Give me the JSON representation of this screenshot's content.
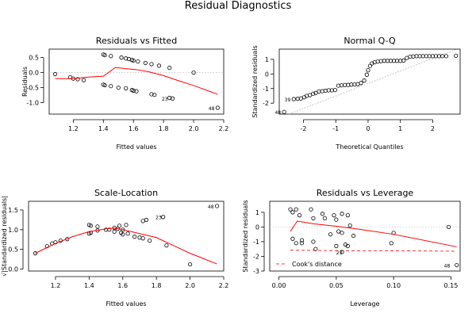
{
  "suptitle": "Residual Diagnostics",
  "chart_data": [
    {
      "type": "scatter",
      "title": "Residuals vs Fitted",
      "xlabel": "Fitted values",
      "ylabel": "Residuals",
      "xlim": [
        1.04,
        2.2
      ],
      "ylim": [
        -1.38,
        0.78
      ],
      "xticks": [
        "1.2",
        "1.4",
        "1.6",
        "1.8",
        "2.0",
        "2.2"
      ],
      "yticks": [
        "-1.0",
        "-0.5",
        "0.0",
        "0.5"
      ],
      "reference_line_y": 0,
      "points": [
        [
          1.08,
          -0.05
        ],
        [
          1.18,
          -0.15
        ],
        [
          1.2,
          -0.2
        ],
        [
          1.23,
          -0.22
        ],
        [
          1.27,
          -0.25
        ],
        [
          1.4,
          0.6
        ],
        [
          1.41,
          0.58
        ],
        [
          1.4,
          -0.4
        ],
        [
          1.41,
          -0.42
        ],
        [
          1.45,
          0.55
        ],
        [
          1.45,
          -0.45
        ],
        [
          1.5,
          -0.5
        ],
        [
          1.52,
          0.5
        ],
        [
          1.55,
          0.47
        ],
        [
          1.55,
          -0.52
        ],
        [
          1.57,
          0.45
        ],
        [
          1.59,
          0.42
        ],
        [
          1.59,
          -0.58
        ],
        [
          1.6,
          0.4
        ],
        [
          1.6,
          -0.6
        ],
        [
          1.62,
          -0.62
        ],
        [
          1.63,
          0.37
        ],
        [
          1.68,
          0.32
        ],
        [
          1.72,
          0.28
        ],
        [
          1.72,
          -0.72
        ],
        [
          1.74,
          -0.74
        ],
        [
          1.77,
          0.23
        ],
        [
          1.84,
          0.16
        ],
        [
          1.84,
          -0.84
        ],
        [
          1.86,
          -0.86
        ],
        [
          2.0,
          0.0
        ],
        [
          2.16,
          -1.17
        ]
      ],
      "smoother": [
        [
          1.08,
          -0.2
        ],
        [
          1.2,
          -0.2
        ],
        [
          1.3,
          -0.15
        ],
        [
          1.4,
          -0.12
        ],
        [
          1.48,
          0.17
        ],
        [
          1.55,
          0.13
        ],
        [
          1.62,
          0.1
        ],
        [
          1.7,
          0.03
        ],
        [
          1.8,
          -0.1
        ],
        [
          1.9,
          -0.27
        ],
        [
          2.0,
          -0.43
        ],
        [
          2.16,
          -0.72
        ]
      ],
      "point_labels": [
        {
          "text": "23",
          "x": 1.85,
          "y": -0.85
        },
        {
          "text": "48",
          "x": 2.16,
          "y": -1.17
        }
      ]
    },
    {
      "type": "scatter",
      "title": "Normal Q-Q",
      "xlabel": "Theoretical Quantiles",
      "ylabel": "Standardized residuals",
      "xlim": [
        -2.75,
        2.85
      ],
      "ylim": [
        -2.75,
        1.7
      ],
      "xticks": [
        "-2",
        "-1",
        "0",
        "1",
        "2"
      ],
      "yticks": [
        "-2",
        "-1",
        "0",
        "1"
      ],
      "points": [
        [
          -2.6,
          -2.6
        ],
        [
          -2.3,
          -1.72
        ],
        [
          -2.18,
          -1.7
        ],
        [
          -2.08,
          -1.68
        ],
        [
          -1.98,
          -1.6
        ],
        [
          -1.9,
          -1.5
        ],
        [
          -1.8,
          -1.45
        ],
        [
          -1.7,
          -1.35
        ],
        [
          -1.62,
          -1.3
        ],
        [
          -1.52,
          -1.2
        ],
        [
          -1.42,
          -1.18
        ],
        [
          -1.32,
          -1.15
        ],
        [
          -1.22,
          -1.12
        ],
        [
          -1.12,
          -1.12
        ],
        [
          -1.02,
          -1.1
        ],
        [
          -0.92,
          -0.8
        ],
        [
          -0.82,
          -0.78
        ],
        [
          -0.72,
          -0.76
        ],
        [
          -0.62,
          -0.75
        ],
        [
          -0.52,
          -0.73
        ],
        [
          -0.42,
          -0.72
        ],
        [
          -0.32,
          -0.7
        ],
        [
          -0.22,
          -0.62
        ],
        [
          -0.12,
          -0.45
        ],
        [
          -0.04,
          -0.05
        ],
        [
          0.0,
          0.25
        ],
        [
          0.06,
          0.55
        ],
        [
          0.12,
          0.72
        ],
        [
          0.2,
          0.8
        ],
        [
          0.3,
          0.85
        ],
        [
          0.4,
          0.88
        ],
        [
          0.5,
          0.9
        ],
        [
          0.6,
          0.9
        ],
        [
          0.7,
          0.9
        ],
        [
          0.8,
          0.9
        ],
        [
          0.9,
          0.9
        ],
        [
          1.0,
          0.9
        ],
        [
          1.1,
          0.92
        ],
        [
          1.2,
          1.1
        ],
        [
          1.3,
          1.18
        ],
        [
          1.4,
          1.2
        ],
        [
          1.5,
          1.22
        ],
        [
          1.6,
          1.22
        ],
        [
          1.7,
          1.22
        ],
        [
          1.8,
          1.22
        ],
        [
          1.9,
          1.22
        ],
        [
          2.0,
          1.22
        ],
        [
          2.1,
          1.22
        ],
        [
          2.2,
          1.22
        ],
        [
          2.3,
          1.22
        ],
        [
          2.42,
          1.22
        ],
        [
          2.72,
          1.25
        ]
      ],
      "reference_line": [
        [
          -2.45,
          -2.75
        ],
        [
          2.75,
          1.7
        ]
      ],
      "point_labels": [
        {
          "text": "39",
          "x": -2.3,
          "y": -1.72
        },
        {
          "text": "48",
          "x": -2.6,
          "y": -2.6
        }
      ]
    },
    {
      "type": "scatter",
      "title": "Scale-Location",
      "xlabel": "Fitted values",
      "ylabel": "√|Standardized residuals|",
      "xlim": [
        1.04,
        2.2
      ],
      "ylim": [
        -0.05,
        1.72
      ],
      "xticks": [
        "1.2",
        "1.4",
        "1.6",
        "1.8",
        "2.0",
        "2.2"
      ],
      "yticks": [
        "0.0",
        "0.5",
        "1.0",
        "1.5"
      ],
      "points": [
        [
          1.08,
          0.4
        ],
        [
          1.15,
          0.58
        ],
        [
          1.18,
          0.65
        ],
        [
          1.2,
          0.68
        ],
        [
          1.23,
          0.72
        ],
        [
          1.27,
          0.76
        ],
        [
          1.4,
          1.12
        ],
        [
          1.41,
          1.1
        ],
        [
          1.4,
          0.9
        ],
        [
          1.41,
          0.92
        ],
        [
          1.45,
          0.98
        ],
        [
          1.45,
          1.08
        ],
        [
          1.5,
          1.0
        ],
        [
          1.52,
          1.0
        ],
        [
          1.55,
          0.95
        ],
        [
          1.55,
          1.05
        ],
        [
          1.57,
          1.02
        ],
        [
          1.58,
          1.1
        ],
        [
          1.59,
          0.92
        ],
        [
          1.6,
          0.88
        ],
        [
          1.6,
          1.0
        ],
        [
          1.62,
          1.12
        ],
        [
          1.63,
          0.9
        ],
        [
          1.67,
          0.82
        ],
        [
          1.7,
          0.8
        ],
        [
          1.72,
          1.22
        ],
        [
          1.72,
          0.78
        ],
        [
          1.74,
          1.25
        ],
        [
          1.76,
          0.72
        ],
        [
          1.84,
          1.32
        ],
        [
          1.86,
          0.6
        ],
        [
          2.0,
          0.12
        ],
        [
          2.16,
          1.6
        ]
      ],
      "smoother": [
        [
          1.08,
          0.4
        ],
        [
          1.2,
          0.65
        ],
        [
          1.3,
          0.82
        ],
        [
          1.4,
          0.95
        ],
        [
          1.5,
          1.02
        ],
        [
          1.55,
          1.04
        ],
        [
          1.6,
          1.0
        ],
        [
          1.7,
          0.9
        ],
        [
          1.8,
          0.8
        ],
        [
          1.9,
          0.6
        ],
        [
          2.0,
          0.4
        ],
        [
          2.16,
          0.13
        ]
      ],
      "point_labels": [
        {
          "text": "23",
          "x": 1.85,
          "y": 1.33
        },
        {
          "text": "48",
          "x": 2.16,
          "y": 1.6
        }
      ]
    },
    {
      "type": "scatter",
      "title": "Residuals vs Leverage",
      "xlabel": "Leverage",
      "ylabel": "Standardized residuals",
      "xlim": [
        -0.008,
        0.158
      ],
      "ylim": [
        -3.0,
        1.75
      ],
      "xticks": [
        "0.00",
        "0.05",
        "0.10",
        "0.15"
      ],
      "yticks": [
        "-3",
        "-2",
        "-1",
        "0",
        "1"
      ],
      "reference_line_y": 0,
      "points": [
        [
          0.01,
          1.2
        ],
        [
          0.012,
          1.0
        ],
        [
          0.015,
          1.2
        ],
        [
          0.018,
          0.8
        ],
        [
          0.02,
          -0.9
        ],
        [
          0.012,
          -0.8
        ],
        [
          0.015,
          -1.1
        ],
        [
          0.02,
          -1.1
        ],
        [
          0.028,
          1.2
        ],
        [
          0.03,
          0.6
        ],
        [
          0.03,
          -1.0
        ],
        [
          0.032,
          -1.5
        ],
        [
          0.038,
          0.9
        ],
        [
          0.04,
          0.6
        ],
        [
          0.045,
          -0.5
        ],
        [
          0.048,
          0.8
        ],
        [
          0.05,
          0.5
        ],
        [
          0.052,
          -0.3
        ],
        [
          0.055,
          0.9
        ],
        [
          0.055,
          -0.4
        ],
        [
          0.058,
          -1.2
        ],
        [
          0.06,
          -1.3
        ],
        [
          0.06,
          0.8
        ],
        [
          0.062,
          0.1
        ],
        [
          0.065,
          -0.6
        ],
        [
          0.055,
          -1.7
        ],
        [
          0.05,
          -1.3
        ],
        [
          0.098,
          -1.1
        ],
        [
          0.1,
          -0.4
        ],
        [
          0.148,
          0.0
        ],
        [
          0.155,
          -2.6
        ]
      ],
      "smoother": [
        [
          0.01,
          -0.3
        ],
        [
          0.016,
          0.4
        ],
        [
          0.03,
          0.22
        ],
        [
          0.05,
          0.05
        ],
        [
          0.07,
          -0.15
        ],
        [
          0.1,
          -0.5
        ],
        [
          0.155,
          -1.35
        ]
      ],
      "cooks_line": [
        [
          0.01,
          -1.58
        ],
        [
          0.05,
          -1.61
        ],
        [
          0.1,
          -1.62
        ],
        [
          0.153,
          -1.65
        ]
      ],
      "legend": {
        "label": "Cook's distance",
        "placement": "bottom-left"
      },
      "point_labels": [
        {
          "text": "23",
          "x": 0.058,
          "y": -1.7
        },
        {
          "text": "48",
          "x": 0.152,
          "y": -2.6
        }
      ]
    }
  ]
}
